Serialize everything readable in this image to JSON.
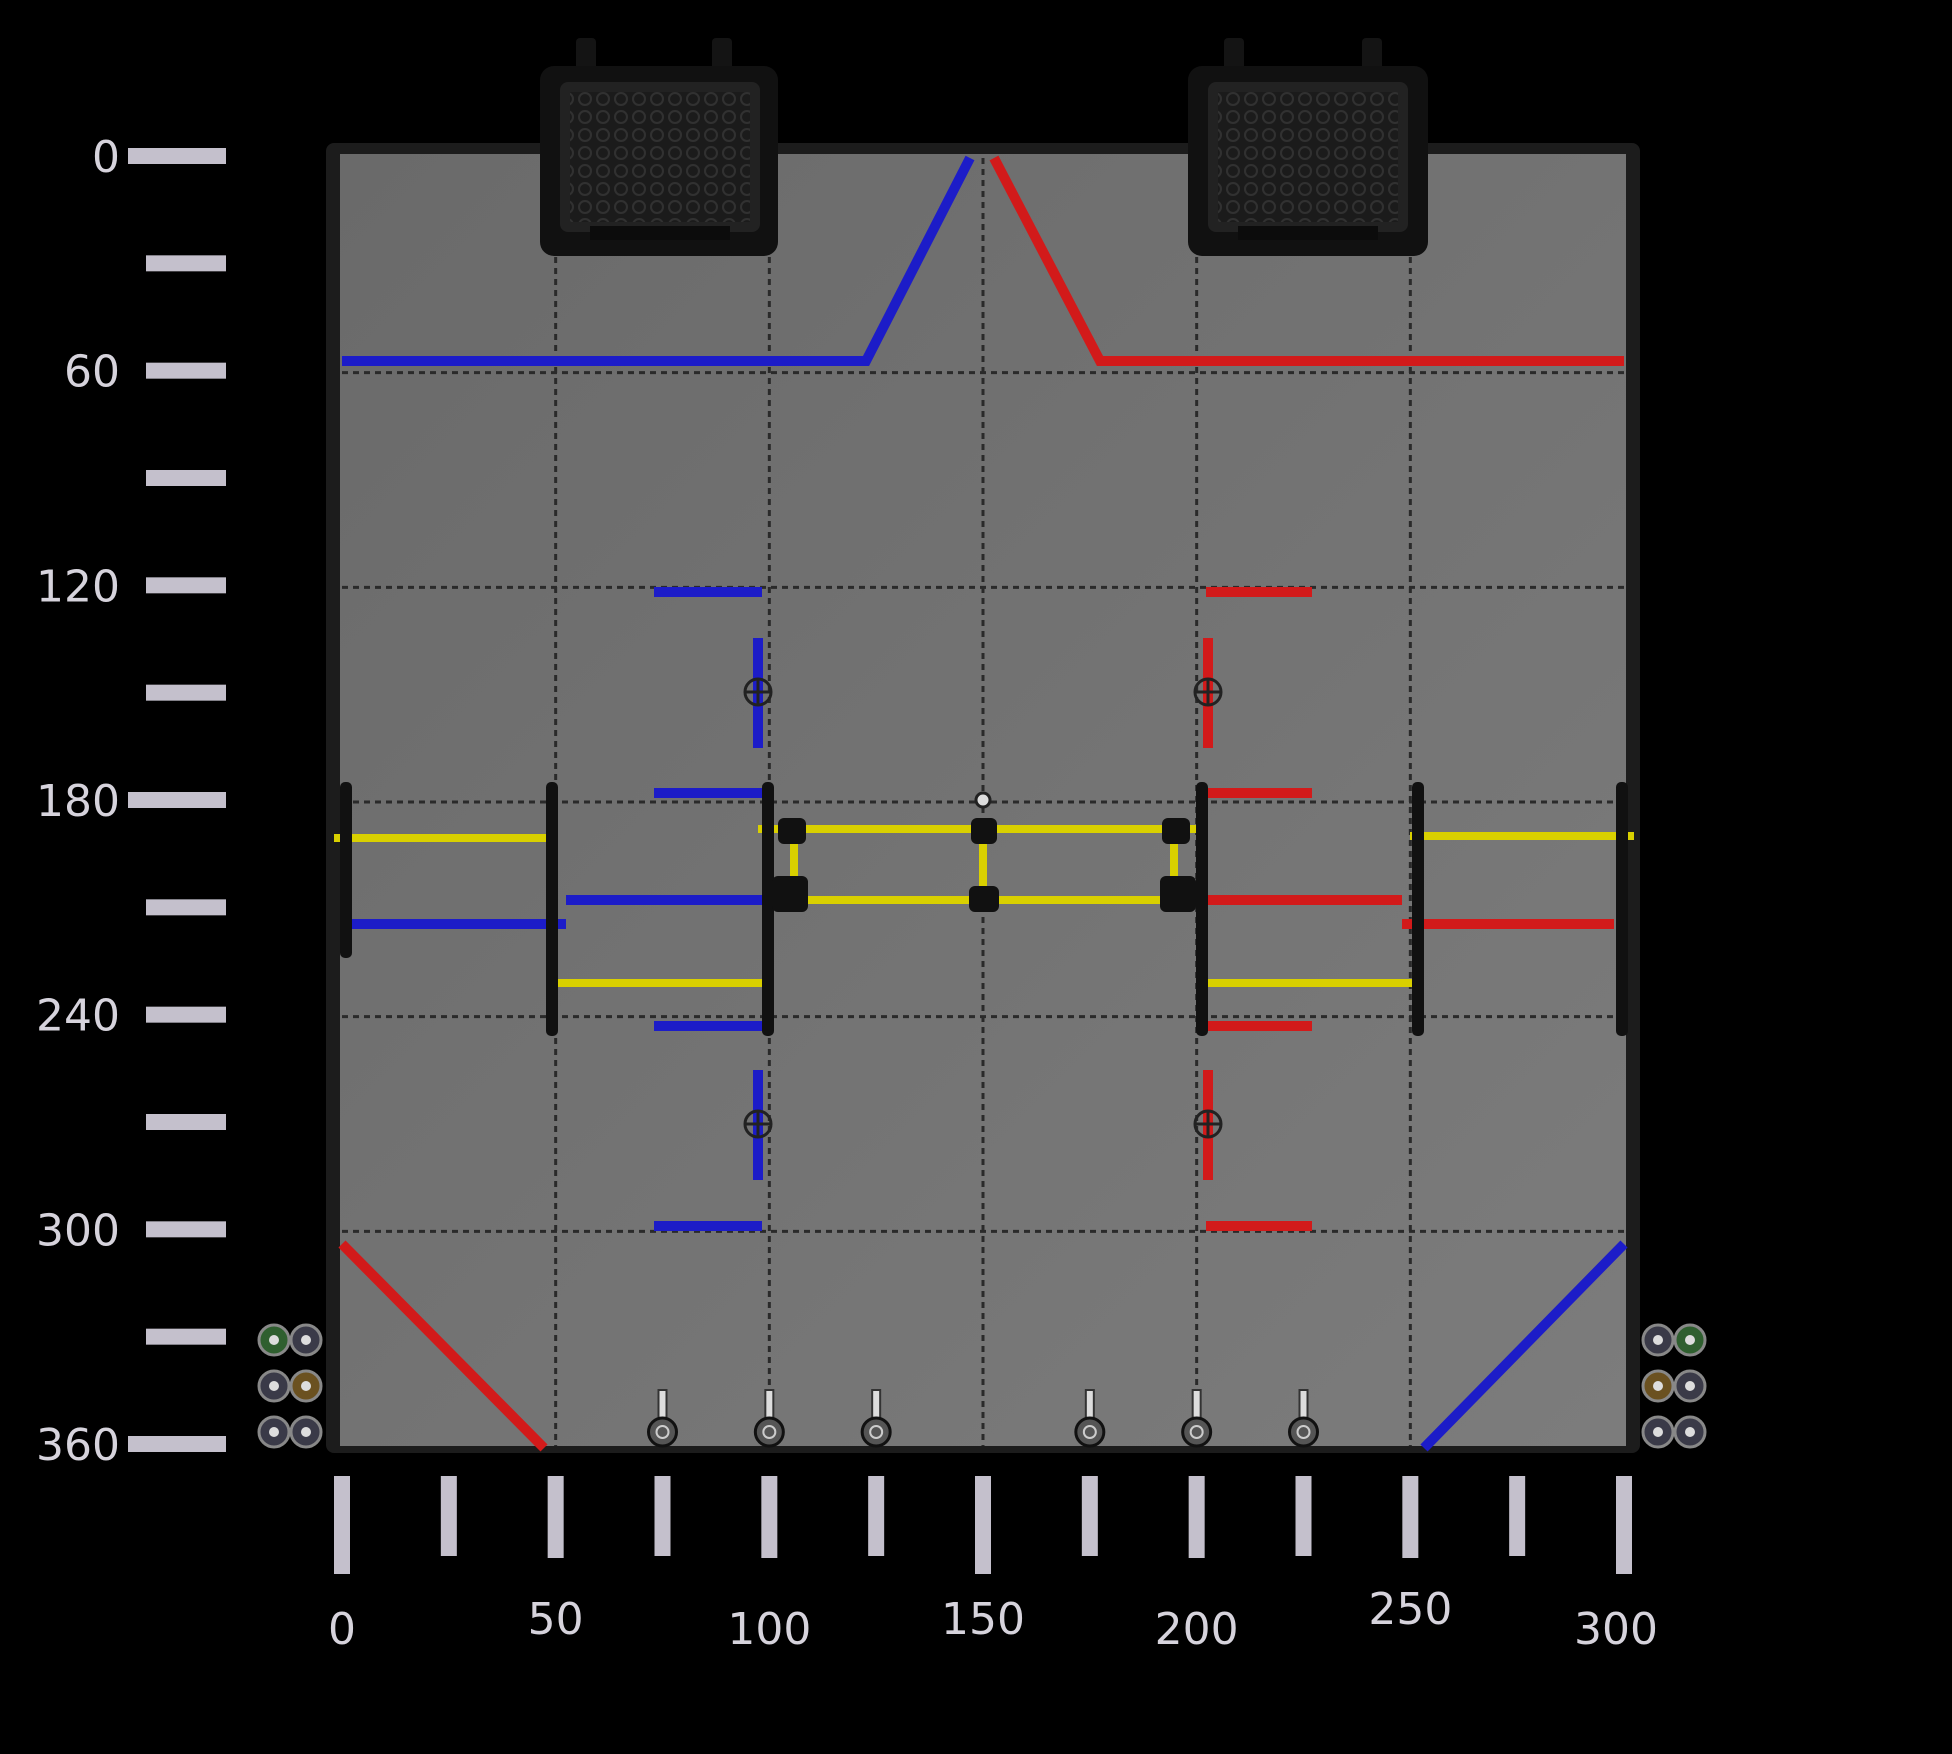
{
  "colors": {
    "background": "#000000",
    "field": "#707070",
    "ruler": "#c4c0cc",
    "tick_text": "#d6d3dc",
    "blue": "#1c1cc8",
    "red": "#d21a1a",
    "yellow": "#d9d000",
    "seam": "#2a2a2a"
  },
  "y_axis": {
    "labels": [
      "0",
      "60",
      "120",
      "180",
      "240",
      "300",
      "360"
    ],
    "values": [
      0,
      60,
      120,
      180,
      240,
      300,
      360
    ]
  },
  "x_axis": {
    "labels": [
      "0",
      "50",
      "100",
      "150",
      "200",
      "250",
      "300"
    ],
    "values": [
      0,
      50,
      100,
      150,
      200,
      250,
      300
    ]
  },
  "field": {
    "grid_columns": 6,
    "grid_rows": 6,
    "icons": {
      "goal": "goal-basket-icon",
      "post": "scoring-post-icon",
      "ball": "game-ball-icon",
      "hub": "wheel-hub-icon"
    }
  }
}
